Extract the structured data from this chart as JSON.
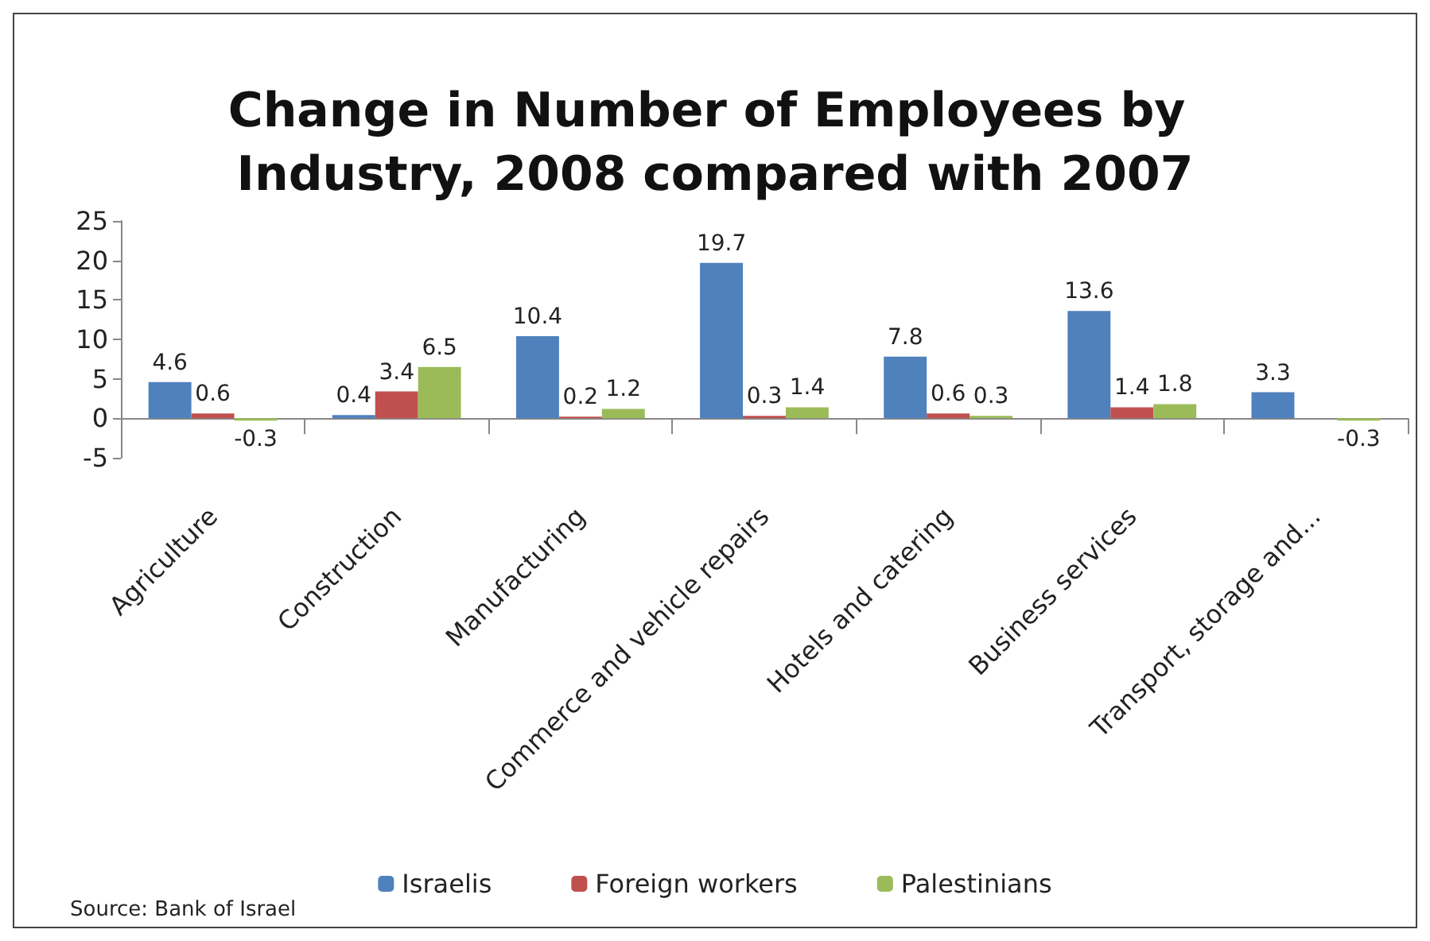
{
  "chart_data": {
    "type": "bar",
    "title": "Change in Number of Employees by Industry, 2008 compared with 2007",
    "categories": [
      "Agriculture",
      "Construction",
      "Manufacturing",
      "Commerce and vehicle repairs",
      "Hotels and catering",
      "Business services",
      "Transport, storage and..."
    ],
    "series": [
      {
        "name": "Israelis",
        "color": "#4f81bd",
        "values": [
          4.6,
          0.4,
          10.4,
          19.7,
          7.8,
          13.6,
          3.3
        ]
      },
      {
        "name": "Foreign workers",
        "color": "#c0504d",
        "values": [
          0.6,
          3.4,
          0.2,
          0.3,
          0.6,
          1.4,
          null
        ]
      },
      {
        "name": "Palestinians",
        "color": "#9bbb59",
        "values": [
          -0.3,
          6.5,
          1.2,
          1.4,
          0.3,
          1.8,
          -0.3
        ]
      }
    ],
    "ylim": [
      -5,
      25
    ],
    "yticks": [
      -5,
      0,
      5,
      10,
      15,
      20,
      25
    ],
    "data_labels": true,
    "legend": "bottom",
    "annotations": [
      "Source: Bank of Israel"
    ]
  }
}
